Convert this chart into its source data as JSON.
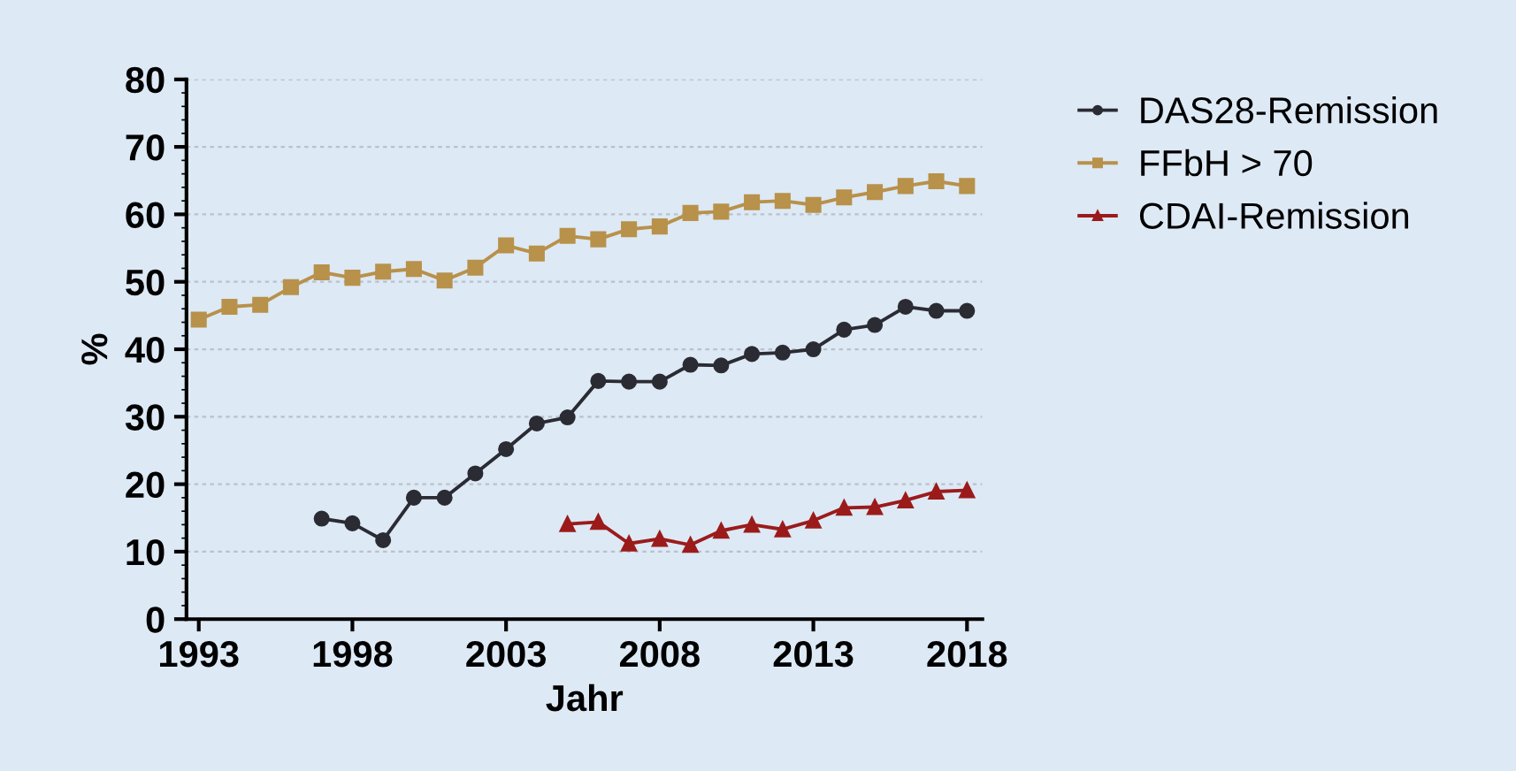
{
  "chart_data": {
    "type": "line",
    "xlabel": "Jahr",
    "ylabel": "%",
    "xlim": [
      1992.6,
      2018.5
    ],
    "xticks": [
      1993,
      1998,
      2003,
      2008,
      2013,
      2018
    ],
    "ylim": [
      0,
      80
    ],
    "yticks": [
      0,
      10,
      20,
      30,
      40,
      50,
      60,
      70,
      80
    ],
    "grid": "y",
    "legend": "top right",
    "line_style": "solid",
    "series": [
      {
        "name": "DAS28-Remission",
        "color": "#2b2b33",
        "marker": "circle",
        "x": [
          1997,
          1998,
          1999,
          2000,
          2001,
          2002,
          2003,
          2004,
          2005,
          2006,
          2007,
          2008,
          2009,
          2010,
          2011,
          2012,
          2013,
          2014,
          2015,
          2016,
          2017,
          2018
        ],
        "values": [
          14.9,
          14.2,
          11.7,
          18.0,
          18.0,
          21.6,
          25.2,
          29.0,
          29.9,
          35.3,
          35.2,
          35.2,
          37.7,
          37.6,
          39.3,
          39.5,
          40.0,
          42.9,
          43.6,
          46.3,
          45.7,
          45.7
        ]
      },
      {
        "name": "FFbH > 70",
        "color": "#b8914a",
        "marker": "square",
        "x": [
          1993,
          1994,
          1995,
          1996,
          1997,
          1998,
          1999,
          2000,
          2001,
          2002,
          2003,
          2004,
          2005,
          2006,
          2007,
          2008,
          2009,
          2010,
          2011,
          2012,
          2013,
          2014,
          2015,
          2016,
          2017,
          2018
        ],
        "values": [
          44.4,
          46.3,
          46.6,
          49.2,
          51.4,
          50.6,
          51.5,
          51.9,
          50.2,
          52.1,
          55.4,
          54.2,
          56.8,
          56.3,
          57.8,
          58.2,
          60.2,
          60.4,
          61.8,
          62.0,
          61.4,
          62.5,
          63.3,
          64.2,
          64.9,
          64.2
        ]
      },
      {
        "name": "CDAI-Remission",
        "color": "#9b1b1b",
        "marker": "triangle",
        "x": [
          2005,
          2006,
          2007,
          2008,
          2009,
          2010,
          2011,
          2012,
          2013,
          2014,
          2015,
          2016,
          2017,
          2018
        ],
        "values": [
          14.1,
          14.4,
          11.2,
          11.9,
          11.0,
          13.1,
          14.0,
          13.3,
          14.6,
          16.5,
          16.6,
          17.6,
          18.9,
          19.1
        ]
      }
    ]
  }
}
